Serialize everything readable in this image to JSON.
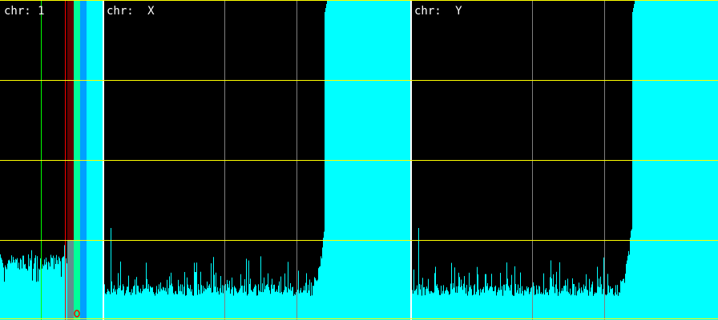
{
  "chart_data": {
    "type": "bar",
    "panels": [
      {
        "label": "chr:",
        "name": "1"
      },
      {
        "label": "chr:",
        "name": "X"
      },
      {
        "label": "chr:",
        "name": "Y"
      }
    ],
    "grid": true,
    "colors": {
      "background": "#000000",
      "bars": "#00ffff",
      "grid_horizontal": "#ffff00",
      "grid_vertical": "#808080",
      "separator": "#ffffff",
      "marker_green": "#00ff00",
      "marker_red": "#ff0000",
      "band_darkred": "#600000",
      "band_green": "#00ff99",
      "band_blue": "#00a0ff",
      "band_cyan": "#00ffff"
    }
  }
}
